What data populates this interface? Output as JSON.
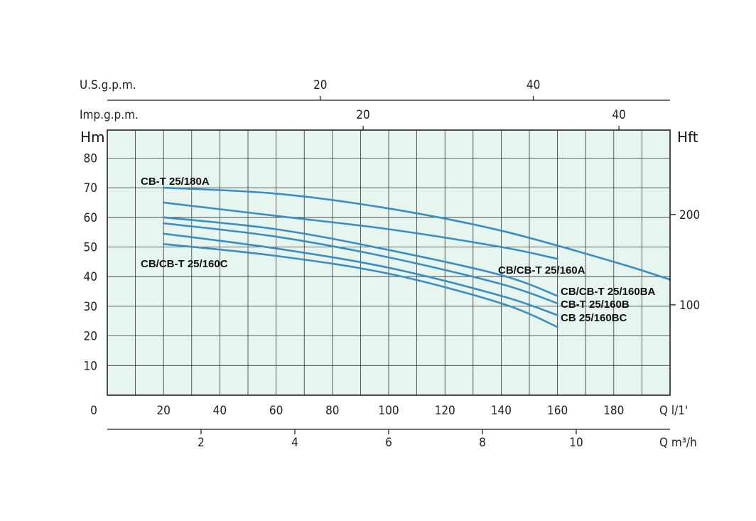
{
  "chart_data": {
    "type": "line",
    "grid": true,
    "plot_background": "#e6f5ee",
    "curve_color": "#3a8ec4",
    "x_primary": {
      "unit_label": "Q l/1'",
      "origin_label": "0",
      "range": [
        0,
        200
      ],
      "ticks": [
        20,
        40,
        60,
        80,
        100,
        120,
        140,
        160,
        180
      ]
    },
    "x_m3h": {
      "unit_label": "Q m³/h",
      "ticks": [
        2,
        4,
        6,
        8,
        10
      ]
    },
    "x_usgpm": {
      "unit_label": "U.S.g.p.m.",
      "ticks": [
        20,
        40
      ]
    },
    "x_impgpm": {
      "unit_label": "Imp.g.p.m.",
      "ticks": [
        20,
        40
      ]
    },
    "y_left": {
      "unit_label": "Hm",
      "range": [
        0,
        90
      ],
      "ticks": [
        10,
        20,
        30,
        40,
        50,
        60,
        70,
        80
      ]
    },
    "y_right": {
      "unit_label": "Hft",
      "ticks": [
        100,
        200
      ]
    },
    "series": [
      {
        "name": "CB-T 25/180A",
        "x": [
          20,
          60,
          100,
          140,
          180,
          200
        ],
        "y": [
          70,
          68,
          63,
          55.5,
          45,
          39
        ]
      },
      {
        "name": "CB/CB-T 25/160A",
        "x": [
          20,
          60,
          100,
          140,
          160
        ],
        "y": [
          65,
          60.5,
          56,
          50,
          46
        ]
      },
      {
        "name": "CB/CB-T 25/160BA",
        "x": [
          20,
          60,
          100,
          140,
          160
        ],
        "y": [
          60,
          56,
          49,
          40.5,
          33.5
        ]
      },
      {
        "name": "CB-T 25/160B",
        "x": [
          20,
          60,
          100,
          140,
          160
        ],
        "y": [
          58,
          53.5,
          46.5,
          37.5,
          31
        ]
      },
      {
        "name": "CB 25/160BC",
        "x": [
          20,
          60,
          100,
          140,
          160
        ],
        "y": [
          54.5,
          49.5,
          43,
          33.5,
          27
        ]
      },
      {
        "name": "CB/CB-T 25/160C",
        "x": [
          20,
          60,
          100,
          140,
          160
        ],
        "y": [
          51,
          47,
          41,
          31,
          23
        ]
      }
    ]
  }
}
